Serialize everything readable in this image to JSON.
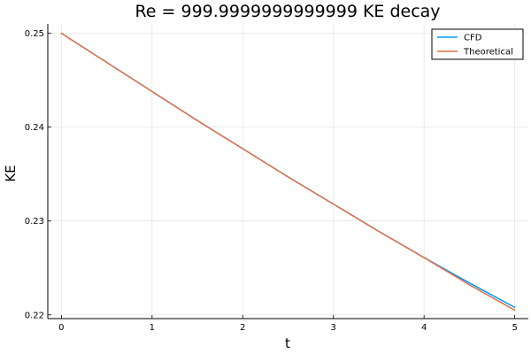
{
  "chart_data": {
    "type": "line",
    "title": "Re = 999.9999999999999 KE decay",
    "xlabel": "t",
    "ylabel": "KE",
    "xlim": [
      -0.15,
      5.15
    ],
    "ylim": [
      0.2196,
      0.251
    ],
    "x_ticks": [
      0,
      1,
      2,
      3,
      4,
      5
    ],
    "x_tick_labels": [
      "0",
      "1",
      "2",
      "3",
      "4",
      "5"
    ],
    "y_ticks": [
      0.22,
      0.23,
      0.24,
      0.25
    ],
    "y_tick_labels": [
      "0.22",
      "0.23",
      "0.24",
      "0.25"
    ],
    "grid": true,
    "legend_position": "top-right",
    "series": [
      {
        "name": "CFD",
        "color": "#009af9",
        "x": [
          0,
          0.5,
          1,
          1.5,
          2,
          2.5,
          3,
          3.5,
          4,
          4.5,
          5
        ],
        "y": [
          0.25,
          0.2469,
          0.2438,
          0.2407,
          0.2377,
          0.2347,
          0.2318,
          0.2289,
          0.2261,
          0.2234,
          0.2208
        ]
      },
      {
        "name": "Theoretical",
        "color": "#e26f46",
        "x": [
          0,
          0.5,
          1,
          1.5,
          2,
          2.5,
          3,
          3.5,
          4,
          4.5,
          5
        ],
        "y": [
          0.25,
          0.2469,
          0.2438,
          0.2407,
          0.2377,
          0.2347,
          0.2318,
          0.2289,
          0.2261,
          0.2232,
          0.2205
        ]
      }
    ]
  }
}
